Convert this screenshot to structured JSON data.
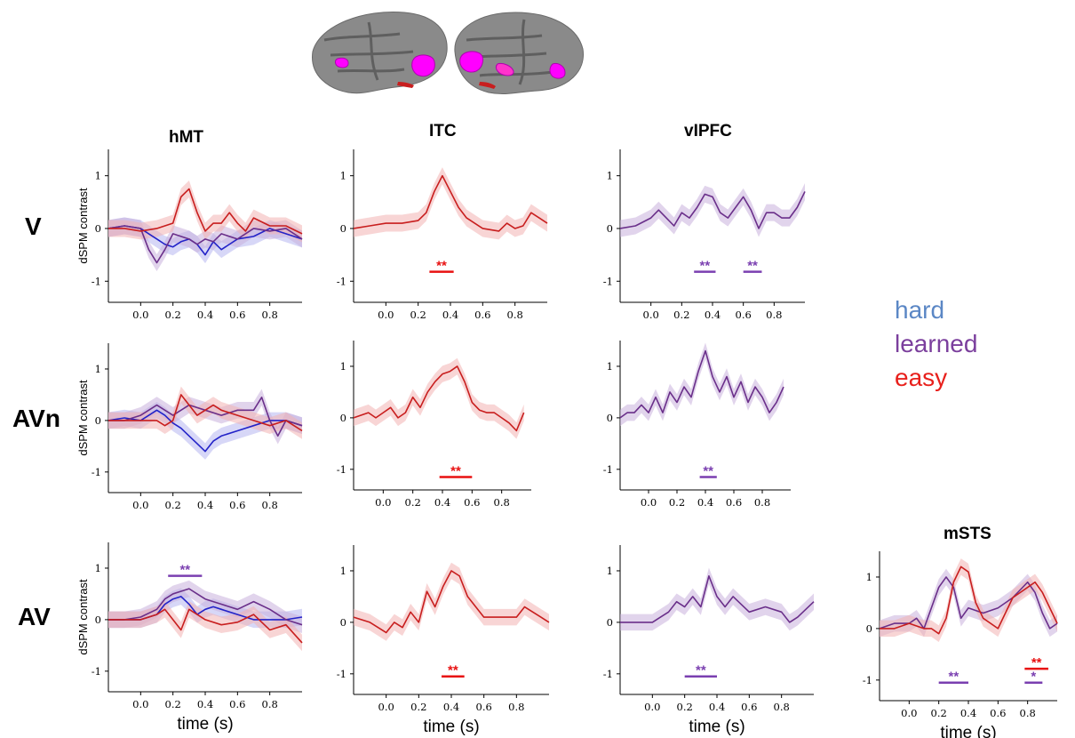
{
  "colors": {
    "hard": "#2323c8",
    "learned": "#6a2f8a",
    "easy": "#c81e1e",
    "sig_easy": "#e81010",
    "sig_learned": "#7a3fb0",
    "legend_hard": "#5b87c5",
    "legend_learned": "#7b3f9d",
    "legend_easy": "#e8201c"
  },
  "legend": {
    "hard": "hard",
    "learned": "learned",
    "easy": "easy"
  },
  "brain": {
    "left_label": "left hemisphere",
    "right_label": "right hemisphere"
  },
  "chart_data": [
    {
      "id": "V-hMT",
      "type": "line",
      "title": "hMT",
      "row_label": "V",
      "ylabel": "dSPM contrast",
      "xlabel": "",
      "xlim": [
        -0.2,
        1.0
      ],
      "ylim": [
        -1.4,
        1.5
      ],
      "xticks": [
        "0.0",
        "0.2",
        "0.4",
        "0.6",
        "0.8"
      ],
      "yticks": [
        "1",
        "0",
        "-1"
      ],
      "series": [
        {
          "name": "hard",
          "x": [
            -0.2,
            -0.1,
            0.0,
            0.05,
            0.1,
            0.15,
            0.2,
            0.25,
            0.3,
            0.35,
            0.4,
            0.45,
            0.5,
            0.55,
            0.6,
            0.7,
            0.8,
            0.9,
            1.0
          ],
          "values": [
            0.0,
            0.05,
            0.0,
            -0.1,
            -0.2,
            -0.3,
            -0.35,
            -0.25,
            -0.2,
            -0.3,
            -0.5,
            -0.25,
            -0.4,
            -0.3,
            -0.2,
            -0.15,
            0.0,
            -0.1,
            -0.2
          ]
        },
        {
          "name": "learned",
          "x": [
            -0.2,
            -0.1,
            0.0,
            0.05,
            0.1,
            0.15,
            0.2,
            0.25,
            0.3,
            0.35,
            0.4,
            0.45,
            0.5,
            0.6,
            0.7,
            0.8,
            0.9,
            1.0
          ],
          "values": [
            0.0,
            0.05,
            0.0,
            -0.4,
            -0.65,
            -0.4,
            -0.1,
            -0.15,
            -0.2,
            -0.3,
            -0.2,
            -0.25,
            -0.1,
            -0.2,
            0.0,
            -0.05,
            0.0,
            -0.2
          ]
        },
        {
          "name": "easy",
          "x": [
            -0.2,
            -0.1,
            0.0,
            0.1,
            0.15,
            0.2,
            0.25,
            0.3,
            0.35,
            0.4,
            0.45,
            0.5,
            0.55,
            0.6,
            0.65,
            0.7,
            0.8,
            0.9,
            1.0
          ],
          "values": [
            0.0,
            0.0,
            -0.05,
            0.0,
            0.05,
            0.1,
            0.6,
            0.75,
            0.3,
            -0.05,
            0.1,
            0.1,
            0.3,
            0.1,
            -0.05,
            0.2,
            0.05,
            0.05,
            -0.1
          ]
        }
      ],
      "sig": []
    },
    {
      "id": "V-ITC",
      "type": "line",
      "title": "ITC",
      "row_label": "V",
      "ylabel": "",
      "xlabel": "",
      "xlim": [
        -0.2,
        1.0
      ],
      "ylim": [
        -1.4,
        1.5
      ],
      "xticks": [
        "0.0",
        "0.2",
        "0.4",
        "0.6",
        "0.8"
      ],
      "yticks": [
        "1",
        "0",
        "-1"
      ],
      "series": [
        {
          "name": "easy",
          "x": [
            -0.2,
            -0.1,
            0.0,
            0.1,
            0.2,
            0.25,
            0.3,
            0.35,
            0.4,
            0.45,
            0.5,
            0.6,
            0.7,
            0.75,
            0.8,
            0.85,
            0.9,
            0.95,
            1.0
          ],
          "values": [
            0.0,
            0.05,
            0.1,
            0.1,
            0.15,
            0.3,
            0.7,
            1.0,
            0.7,
            0.4,
            0.2,
            0.0,
            -0.05,
            0.1,
            0.0,
            0.05,
            0.3,
            0.2,
            0.1
          ]
        }
      ],
      "sig": [
        {
          "label": "**",
          "start": 0.27,
          "end": 0.42,
          "color": "easy",
          "y": -0.82
        }
      ]
    },
    {
      "id": "V-vlPFC",
      "type": "line",
      "title": "vIPFC",
      "row_label": "V",
      "ylabel": "",
      "xlabel": "",
      "xlim": [
        -0.2,
        1.0
      ],
      "ylim": [
        -1.4,
        1.5
      ],
      "xticks": [
        "0.0",
        "0.2",
        "0.4",
        "0.6",
        "0.8"
      ],
      "yticks": [
        "1",
        "0",
        "-1"
      ],
      "series": [
        {
          "name": "learned",
          "x": [
            -0.2,
            -0.1,
            0.0,
            0.05,
            0.1,
            0.15,
            0.2,
            0.25,
            0.3,
            0.35,
            0.4,
            0.45,
            0.5,
            0.55,
            0.6,
            0.65,
            0.7,
            0.75,
            0.8,
            0.85,
            0.9,
            0.95,
            1.0
          ],
          "values": [
            0.0,
            0.05,
            0.2,
            0.35,
            0.2,
            0.05,
            0.3,
            0.2,
            0.4,
            0.65,
            0.6,
            0.3,
            0.2,
            0.4,
            0.6,
            0.35,
            0.0,
            0.3,
            0.3,
            0.2,
            0.2,
            0.4,
            0.7
          ]
        }
      ],
      "sig": [
        {
          "label": "**",
          "start": 0.28,
          "end": 0.42,
          "color": "learned",
          "y": -0.82
        },
        {
          "label": "**",
          "start": 0.6,
          "end": 0.72,
          "color": "learned",
          "y": -0.82
        }
      ]
    },
    {
      "id": "AVn-hMT",
      "type": "line",
      "title": "",
      "row_label": "AVn",
      "ylabel": "dSPM contrast",
      "xlabel": "",
      "xlim": [
        -0.2,
        1.0
      ],
      "ylim": [
        -1.4,
        1.5
      ],
      "xticks": [
        "0.0",
        "0.2",
        "0.4",
        "0.6",
        "0.8"
      ],
      "yticks": [
        "1",
        "0",
        "-1"
      ],
      "series": [
        {
          "name": "hard",
          "x": [
            -0.2,
            -0.1,
            0.0,
            0.1,
            0.15,
            0.2,
            0.25,
            0.3,
            0.35,
            0.4,
            0.45,
            0.5,
            0.6,
            0.7,
            0.8,
            0.9,
            1.0
          ],
          "values": [
            0.0,
            0.05,
            0.0,
            0.2,
            0.1,
            -0.05,
            -0.15,
            -0.3,
            -0.45,
            -0.6,
            -0.4,
            -0.3,
            -0.2,
            -0.1,
            0.0,
            0.0,
            -0.1
          ]
        },
        {
          "name": "learned",
          "x": [
            -0.2,
            -0.1,
            0.0,
            0.1,
            0.15,
            0.2,
            0.25,
            0.3,
            0.4,
            0.5,
            0.6,
            0.7,
            0.75,
            0.8,
            0.85,
            0.9,
            1.0
          ],
          "values": [
            0.0,
            0.0,
            0.1,
            0.3,
            0.2,
            0.1,
            0.2,
            0.3,
            0.2,
            0.1,
            0.2,
            0.2,
            0.45,
            0.0,
            -0.3,
            0.0,
            -0.1
          ]
        },
        {
          "name": "easy",
          "x": [
            -0.2,
            -0.1,
            0.0,
            0.1,
            0.15,
            0.2,
            0.25,
            0.3,
            0.35,
            0.4,
            0.45,
            0.5,
            0.6,
            0.7,
            0.8,
            0.9,
            1.0
          ],
          "values": [
            0.0,
            0.0,
            0.0,
            0.0,
            -0.1,
            0.0,
            0.5,
            0.3,
            0.1,
            0.2,
            0.3,
            0.2,
            0.1,
            0.0,
            -0.1,
            0.0,
            -0.2
          ]
        }
      ],
      "sig": []
    },
    {
      "id": "AVn-ITC",
      "type": "line",
      "title": "",
      "row_label": "AVn",
      "ylabel": "",
      "xlabel": "",
      "xlim": [
        -0.2,
        1.0
      ],
      "ylim": [
        -1.4,
        1.5
      ],
      "xticks": [
        "0.0",
        "0.2",
        "0.4",
        "0.6",
        "0.8"
      ],
      "yticks": [
        "1",
        "0",
        "-1"
      ],
      "series": [
        {
          "name": "easy",
          "x": [
            -0.2,
            -0.1,
            -0.05,
            0.0,
            0.05,
            0.1,
            0.15,
            0.2,
            0.25,
            0.3,
            0.35,
            0.4,
            0.45,
            0.5,
            0.55,
            0.6,
            0.65,
            0.7,
            0.75,
            0.8,
            0.85,
            0.9,
            0.95
          ],
          "values": [
            0.0,
            0.1,
            0.0,
            0.1,
            0.2,
            0.0,
            0.1,
            0.4,
            0.2,
            0.5,
            0.7,
            0.85,
            0.9,
            1.0,
            0.7,
            0.3,
            0.15,
            0.1,
            0.1,
            0.0,
            -0.1,
            -0.25,
            0.1
          ]
        }
      ],
      "sig": [
        {
          "label": "**",
          "start": 0.38,
          "end": 0.6,
          "color": "easy",
          "y": -1.15
        }
      ]
    },
    {
      "id": "AVn-vlPFC",
      "type": "line",
      "title": "",
      "row_label": "AVn",
      "ylabel": "",
      "xlabel": "",
      "xlim": [
        -0.2,
        1.0
      ],
      "ylim": [
        -1.4,
        1.5
      ],
      "xticks": [
        "0.0",
        "0.2",
        "0.4",
        "0.6",
        "0.8"
      ],
      "yticks": [
        "1",
        "0",
        "-1"
      ],
      "series": [
        {
          "name": "learned",
          "x": [
            -0.2,
            -0.15,
            -0.1,
            -0.05,
            0.0,
            0.05,
            0.1,
            0.15,
            0.2,
            0.25,
            0.3,
            0.35,
            0.4,
            0.45,
            0.5,
            0.55,
            0.6,
            0.65,
            0.7,
            0.75,
            0.8,
            0.85,
            0.9,
            0.95
          ],
          "values": [
            0.0,
            0.1,
            0.1,
            0.25,
            0.1,
            0.4,
            0.1,
            0.5,
            0.3,
            0.6,
            0.4,
            0.9,
            1.3,
            0.8,
            0.5,
            0.8,
            0.4,
            0.7,
            0.3,
            0.6,
            0.4,
            0.1,
            0.3,
            0.6
          ]
        }
      ],
      "sig": [
        {
          "label": "**",
          "start": 0.36,
          "end": 0.48,
          "color": "learned",
          "y": -1.15
        }
      ]
    },
    {
      "id": "AV-hMT",
      "type": "line",
      "title": "",
      "row_label": "AV",
      "ylabel": "dSPM contrast",
      "xlabel": "time (s)",
      "xlim": [
        -0.2,
        1.0
      ],
      "ylim": [
        -1.4,
        1.5
      ],
      "xticks": [
        "0.0",
        "0.2",
        "0.4",
        "0.6",
        "0.8"
      ],
      "yticks": [
        "1",
        "0",
        "-1"
      ],
      "series": [
        {
          "name": "hard",
          "x": [
            -0.2,
            -0.1,
            0.0,
            0.1,
            0.15,
            0.2,
            0.25,
            0.3,
            0.35,
            0.4,
            0.45,
            0.5,
            0.6,
            0.7,
            0.8,
            0.9,
            1.0
          ],
          "values": [
            0.0,
            0.0,
            0.0,
            0.1,
            0.3,
            0.4,
            0.45,
            0.3,
            0.1,
            0.2,
            0.25,
            0.2,
            0.1,
            0.0,
            0.0,
            0.0,
            0.05
          ]
        },
        {
          "name": "learned",
          "x": [
            -0.2,
            -0.1,
            0.0,
            0.1,
            0.15,
            0.2,
            0.25,
            0.3,
            0.35,
            0.4,
            0.5,
            0.6,
            0.7,
            0.8,
            0.9,
            1.0
          ],
          "values": [
            0.0,
            0.0,
            0.05,
            0.2,
            0.4,
            0.5,
            0.55,
            0.6,
            0.5,
            0.4,
            0.3,
            0.2,
            0.35,
            0.2,
            0.0,
            -0.1
          ]
        },
        {
          "name": "easy",
          "x": [
            -0.2,
            -0.1,
            0.0,
            0.1,
            0.15,
            0.2,
            0.25,
            0.3,
            0.35,
            0.4,
            0.5,
            0.6,
            0.7,
            0.8,
            0.9,
            1.0
          ],
          "values": [
            0.0,
            0.0,
            0.0,
            0.1,
            0.2,
            0.0,
            -0.2,
            0.2,
            0.1,
            0.0,
            -0.1,
            -0.05,
            0.1,
            -0.2,
            -0.1,
            -0.45
          ]
        }
      ],
      "sig": [
        {
          "label": "**",
          "start": 0.17,
          "end": 0.38,
          "color": "learned",
          "y": 0.85
        }
      ]
    },
    {
      "id": "AV-ITC",
      "type": "line",
      "title": "",
      "row_label": "AV",
      "ylabel": "",
      "xlabel": "time (s)",
      "xlim": [
        -0.2,
        1.0
      ],
      "ylim": [
        -1.4,
        1.5
      ],
      "xticks": [
        "0.0",
        "0.2",
        "0.4",
        "0.6",
        "0.8"
      ],
      "yticks": [
        "1",
        "0",
        "-1"
      ],
      "series": [
        {
          "name": "easy",
          "x": [
            -0.2,
            -0.1,
            0.0,
            0.05,
            0.1,
            0.15,
            0.2,
            0.25,
            0.3,
            0.35,
            0.4,
            0.45,
            0.5,
            0.6,
            0.7,
            0.8,
            0.85,
            0.9,
            0.95,
            1.0
          ],
          "values": [
            0.1,
            0.0,
            -0.2,
            0.0,
            -0.1,
            0.2,
            0.0,
            0.6,
            0.3,
            0.7,
            1.0,
            0.9,
            0.5,
            0.1,
            0.1,
            0.1,
            0.3,
            0.2,
            0.1,
            0.0
          ]
        }
      ],
      "sig": [
        {
          "label": "**",
          "start": 0.34,
          "end": 0.48,
          "color": "easy",
          "y": -1.05
        }
      ]
    },
    {
      "id": "AV-vlPFC",
      "type": "line",
      "title": "",
      "row_label": "AV",
      "ylabel": "",
      "xlabel": "time (s)",
      "xlim": [
        -0.2,
        1.0
      ],
      "ylim": [
        -1.4,
        1.5
      ],
      "xticks": [
        "0.0",
        "0.2",
        "0.4",
        "0.6",
        "0.8"
      ],
      "yticks": [
        "1",
        "0",
        "-1"
      ],
      "series": [
        {
          "name": "learned",
          "x": [
            -0.2,
            -0.1,
            0.0,
            0.05,
            0.1,
            0.15,
            0.2,
            0.25,
            0.3,
            0.35,
            0.4,
            0.45,
            0.5,
            0.6,
            0.7,
            0.8,
            0.85,
            0.9,
            1.0
          ],
          "values": [
            0.0,
            0.0,
            0.0,
            0.1,
            0.2,
            0.4,
            0.3,
            0.5,
            0.3,
            0.9,
            0.5,
            0.3,
            0.5,
            0.2,
            0.3,
            0.2,
            0.0,
            0.1,
            0.4
          ]
        }
      ],
      "sig": [
        {
          "label": "**",
          "start": 0.2,
          "end": 0.4,
          "color": "learned",
          "y": -1.05
        }
      ]
    },
    {
      "id": "AV-mSTS",
      "type": "line",
      "title": "mSTS",
      "row_label": "AV",
      "ylabel": "",
      "xlabel": "time (s)",
      "xlim": [
        -0.2,
        1.0
      ],
      "ylim": [
        -1.4,
        1.5
      ],
      "xticks": [
        "0.0",
        "0.2",
        "0.4",
        "0.6",
        "0.8"
      ],
      "yticks": [
        "1",
        "0",
        "-1"
      ],
      "series": [
        {
          "name": "learned",
          "x": [
            -0.2,
            -0.1,
            0.0,
            0.05,
            0.1,
            0.15,
            0.2,
            0.25,
            0.3,
            0.35,
            0.4,
            0.5,
            0.6,
            0.7,
            0.8,
            0.85,
            0.9,
            0.95,
            1.0
          ],
          "values": [
            0.0,
            0.1,
            0.1,
            0.2,
            0.0,
            0.4,
            0.8,
            1.0,
            0.8,
            0.2,
            0.4,
            0.3,
            0.4,
            0.6,
            0.9,
            0.7,
            0.3,
            0.0,
            0.1
          ]
        },
        {
          "name": "easy",
          "x": [
            -0.2,
            -0.1,
            0.0,
            0.1,
            0.15,
            0.2,
            0.25,
            0.3,
            0.35,
            0.4,
            0.45,
            0.5,
            0.6,
            0.7,
            0.75,
            0.8,
            0.85,
            0.9,
            1.0
          ],
          "values": [
            0.0,
            0.0,
            0.1,
            0.0,
            0.0,
            -0.1,
            0.2,
            0.9,
            1.2,
            1.1,
            0.5,
            0.2,
            0.0,
            0.6,
            0.7,
            0.8,
            0.9,
            0.7,
            0.1
          ]
        }
      ],
      "sig": [
        {
          "label": "**",
          "start": 0.2,
          "end": 0.4,
          "color": "learned",
          "y": -1.05
        },
        {
          "label": "**",
          "start": 0.78,
          "end": 0.94,
          "color": "easy",
          "y": -0.78
        },
        {
          "label": "*",
          "start": 0.78,
          "end": 0.9,
          "color": "learned",
          "y": -1.05
        }
      ]
    }
  ]
}
